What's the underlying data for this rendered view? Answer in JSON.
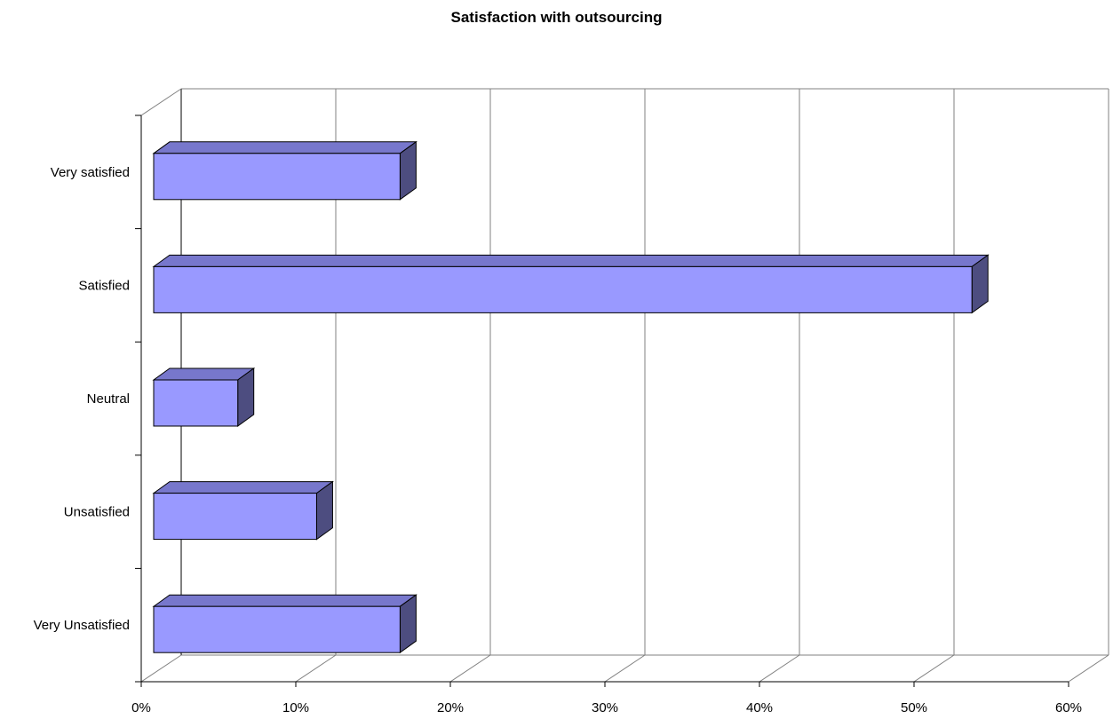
{
  "chart_data": {
    "type": "bar",
    "orientation": "horizontal",
    "style": "3d",
    "title": "Satisfaction with outsourcing",
    "categories": [
      "Very satisfied",
      "Satisfied",
      "Neutral",
      "Unsatisfied",
      "Very Unsatisfied"
    ],
    "values": [
      16,
      53,
      5.5,
      10.6,
      16
    ],
    "x_axis": {
      "min": 0,
      "max": 60,
      "ticks": [
        0,
        10,
        20,
        30,
        40,
        50,
        60
      ],
      "tick_labels": [
        "0%",
        "10%",
        "20%",
        "30%",
        "40%",
        "50%",
        "60%"
      ],
      "unit": "%"
    },
    "xlabel": "",
    "ylabel": "",
    "grid": true,
    "legend": "none",
    "colors": {
      "bar_front": "#9999ff",
      "bar_top": "#7777cc",
      "bar_side": "#4d4d80",
      "gridline": "#808080",
      "axis": "#000000"
    }
  }
}
